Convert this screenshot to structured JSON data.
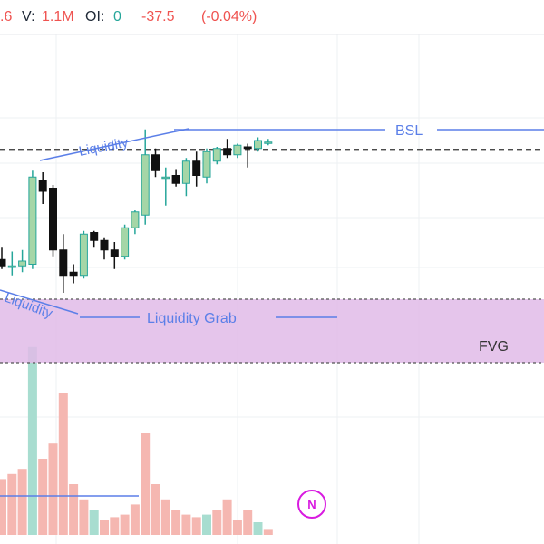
{
  "header": {
    "open_fragment": ".6",
    "volume_label": "V:",
    "volume_value": "1.1M",
    "oi_label": "OI:",
    "oi_value": "0",
    "change": "-37.5",
    "change_pct": "(-0.04%)"
  },
  "annotations": {
    "liquidity_top": "Liquidity",
    "liquidity_bottom": "Liquidity",
    "bsl": "BSL",
    "liquidity_grab": "Liquidity Grab",
    "fvg": "FVG"
  },
  "buttons": {
    "news_badge": "N"
  },
  "colors": {
    "up": "#26a69a",
    "up_fill": "#a5d6a7",
    "down": "#111111",
    "annotation_blue": "#5b7fe8",
    "fvg_fill": "#e1bbe8",
    "vol_up": "#a8ddd0",
    "vol_down": "#f5b7b1",
    "news": "#d81be0"
  },
  "chart_data": {
    "type": "candlestick",
    "candles": [
      {
        "o": 1.25,
        "h": 1.65,
        "l": 0.95,
        "c": 1.05
      },
      {
        "o": 1.0,
        "h": 1.5,
        "l": 0.75,
        "c": 1.05
      },
      {
        "o": 1.05,
        "h": 1.55,
        "l": 0.85,
        "c": 1.2
      },
      {
        "o": 1.1,
        "h": 4.05,
        "l": 0.95,
        "c": 3.85
      },
      {
        "o": 3.75,
        "h": 4.0,
        "l": 3.0,
        "c": 3.4
      },
      {
        "o": 3.5,
        "h": 3.6,
        "l": 1.35,
        "c": 1.55
      },
      {
        "o": 1.55,
        "h": 2.05,
        "l": 0.2,
        "c": 0.75
      },
      {
        "o": 0.85,
        "h": 1.1,
        "l": 0.5,
        "c": 0.75
      },
      {
        "o": 0.75,
        "h": 2.15,
        "l": 0.65,
        "c": 2.05
      },
      {
        "o": 2.1,
        "h": 2.15,
        "l": 1.65,
        "c": 1.85
      },
      {
        "o": 1.85,
        "h": 1.95,
        "l": 1.25,
        "c": 1.55
      },
      {
        "o": 1.55,
        "h": 1.8,
        "l": 0.95,
        "c": 1.35
      },
      {
        "o": 1.35,
        "h": 2.35,
        "l": 1.25,
        "c": 2.25
      },
      {
        "o": 2.25,
        "h": 2.8,
        "l": 2.05,
        "c": 2.75
      },
      {
        "o": 2.65,
        "h": 5.35,
        "l": 2.35,
        "c": 4.55
      },
      {
        "o": 4.55,
        "h": 4.75,
        "l": 3.85,
        "c": 4.05
      },
      {
        "o": 3.85,
        "h": 4.15,
        "l": 2.95,
        "c": 3.85
      },
      {
        "o": 3.9,
        "h": 4.1,
        "l": 3.55,
        "c": 3.65
      },
      {
        "o": 3.65,
        "h": 4.45,
        "l": 3.25,
        "c": 4.35
      },
      {
        "o": 4.35,
        "h": 4.65,
        "l": 3.55,
        "c": 3.9
      },
      {
        "o": 3.85,
        "h": 4.75,
        "l": 3.65,
        "c": 4.65
      },
      {
        "o": 4.35,
        "h": 4.8,
        "l": 4.25,
        "c": 4.75
      },
      {
        "o": 4.75,
        "h": 5.05,
        "l": 4.45,
        "c": 4.55
      },
      {
        "o": 4.55,
        "h": 4.9,
        "l": 4.45,
        "c": 4.85
      },
      {
        "o": 4.8,
        "h": 4.9,
        "l": 4.15,
        "c": 4.75
      },
      {
        "o": 4.75,
        "h": 5.1,
        "l": 4.65,
        "c": 5.0
      },
      {
        "o": 4.95,
        "h": 5.05,
        "l": 4.85,
        "c": 4.95
      }
    ],
    "volumes": [
      {
        "v": 1.1,
        "up": false
      },
      {
        "v": 1.2,
        "up": false
      },
      {
        "v": 1.3,
        "up": false
      },
      {
        "v": 3.7,
        "up": true
      },
      {
        "v": 1.5,
        "up": false
      },
      {
        "v": 1.8,
        "up": false
      },
      {
        "v": 2.8,
        "up": false
      },
      {
        "v": 1.0,
        "up": false
      },
      {
        "v": 0.7,
        "up": false
      },
      {
        "v": 0.5,
        "up": true
      },
      {
        "v": 0.3,
        "up": false
      },
      {
        "v": 0.35,
        "up": false
      },
      {
        "v": 0.4,
        "up": false
      },
      {
        "v": 0.6,
        "up": false
      },
      {
        "v": 2.0,
        "up": false
      },
      {
        "v": 1.0,
        "up": false
      },
      {
        "v": 0.7,
        "up": false
      },
      {
        "v": 0.5,
        "up": false
      },
      {
        "v": 0.4,
        "up": false
      },
      {
        "v": 0.35,
        "up": false
      },
      {
        "v": 0.4,
        "up": true
      },
      {
        "v": 0.5,
        "up": false
      },
      {
        "v": 0.7,
        "up": false
      },
      {
        "v": 0.3,
        "up": false
      },
      {
        "v": 0.5,
        "up": false
      },
      {
        "v": 0.25,
        "up": true
      },
      {
        "v": 0.1,
        "up": false
      }
    ],
    "levels": {
      "bsl": 4.95,
      "fvg_top": 0.0,
      "fvg_bottom": -2.0,
      "liquidity_grab": 0.2
    }
  }
}
